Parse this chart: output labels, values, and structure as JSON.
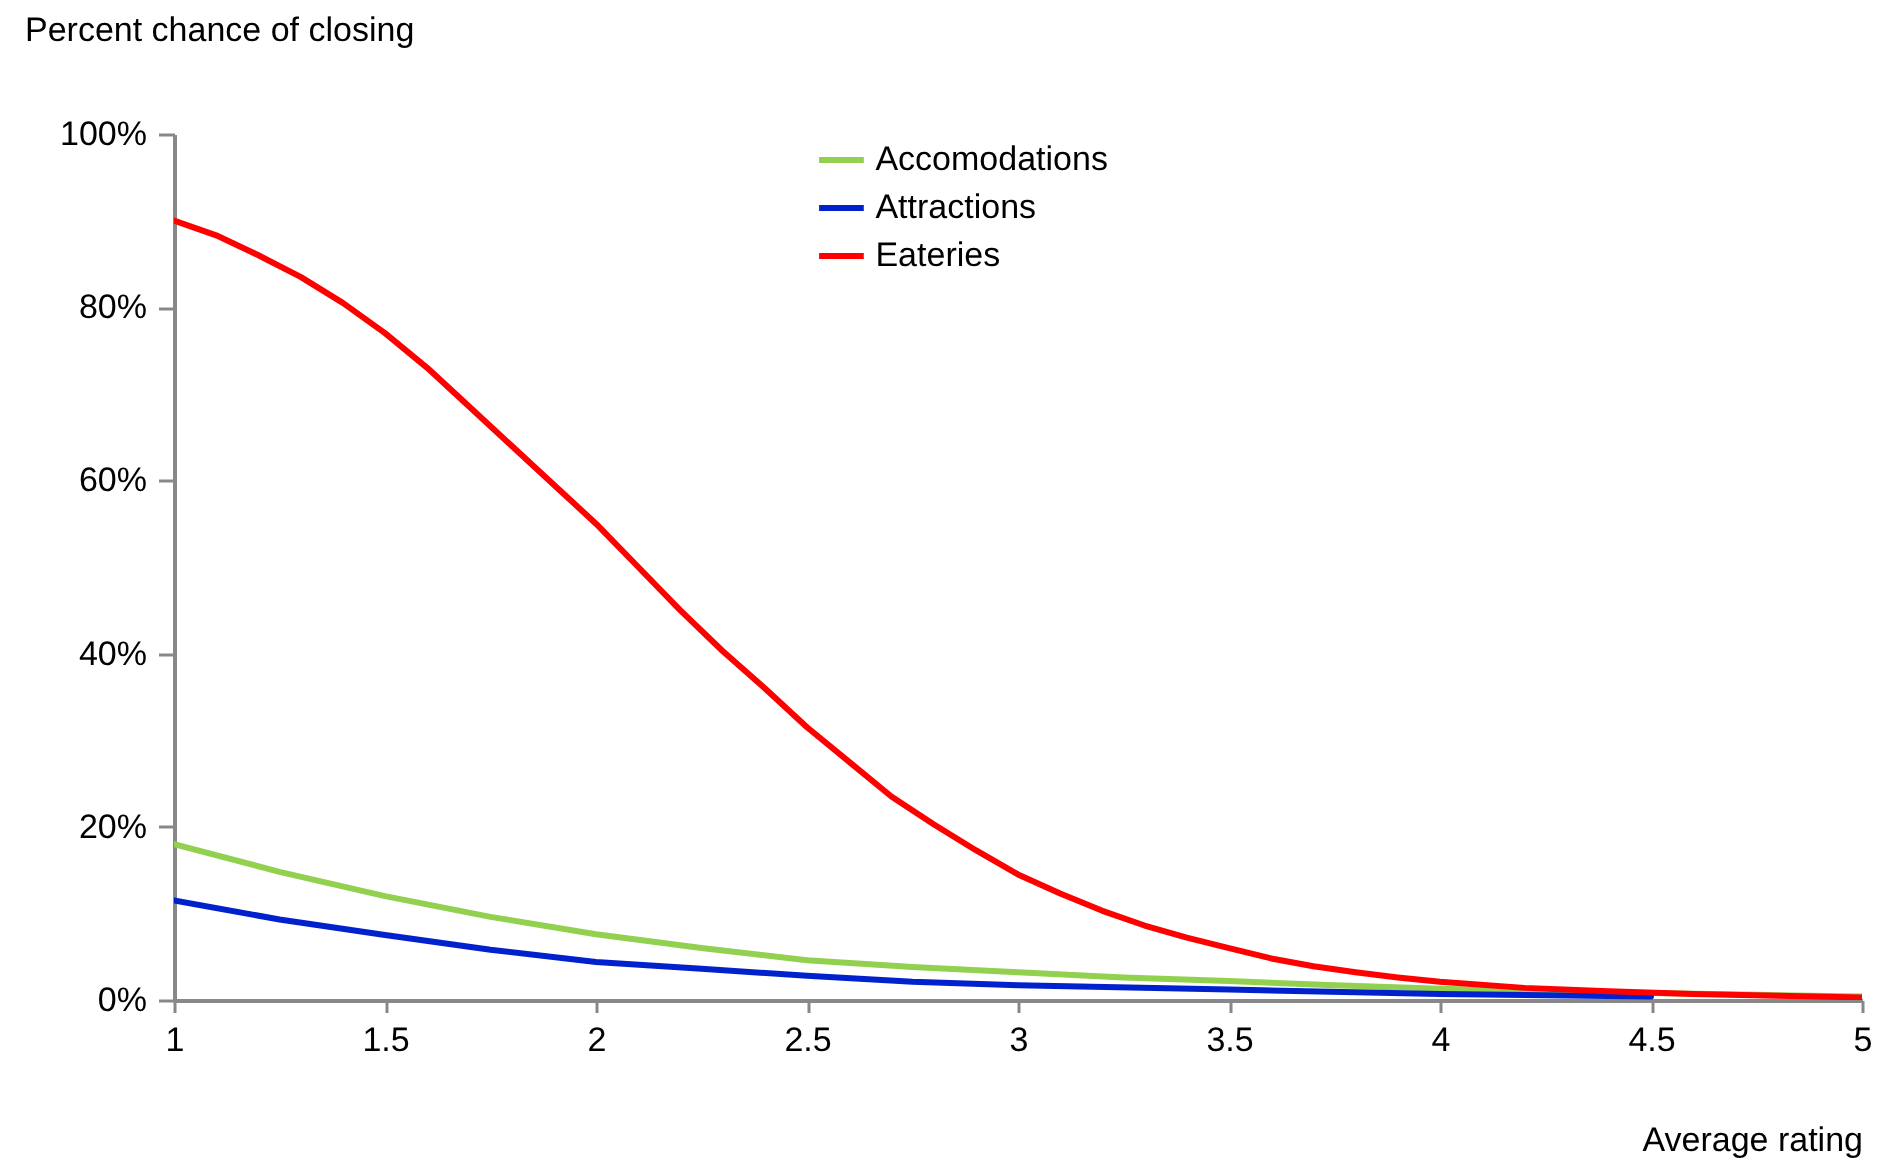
{
  "chart_data": {
    "type": "line",
    "xlabel": "Average rating",
    "ylabel": "Percent chance of closing",
    "xlim": [
      1,
      5
    ],
    "xticks": [
      1,
      1.5,
      2,
      2.5,
      3,
      3.5,
      4,
      4.5,
      5
    ],
    "ylim": [
      0,
      100
    ],
    "yticks": [
      {
        "value": 0,
        "label": "0%"
      },
      {
        "value": 20,
        "label": "20%"
      },
      {
        "value": 40,
        "label": "40%"
      },
      {
        "value": 60,
        "label": "60%"
      },
      {
        "value": 80,
        "label": "80%"
      },
      {
        "value": 100,
        "label": "100%"
      }
    ],
    "grid": false,
    "legend": "top",
    "line_style": "solid",
    "marker": "none",
    "series": [
      {
        "name": "Accomodations",
        "color": "#92d050",
        "x": [
          1,
          1.25,
          1.5,
          1.75,
          2,
          2.25,
          2.5,
          2.75,
          3,
          3.25,
          3.5,
          3.75,
          4,
          4.25,
          4.5,
          4.75,
          5
        ],
        "values": [
          18,
          14.8,
          12,
          9.6,
          7.6,
          6,
          4.6,
          3.8,
          3.2,
          2.6,
          2.2,
          1.7,
          1.3,
          1,
          0.8,
          0.6,
          0.4
        ]
      },
      {
        "name": "Attractions",
        "color": "#0022cc",
        "x": [
          1,
          1.25,
          1.5,
          1.75,
          2,
          2.25,
          2.5,
          2.75,
          3,
          3.5,
          4,
          4.5
        ],
        "values": [
          11.5,
          9.3,
          7.5,
          5.8,
          4.4,
          3.6,
          2.8,
          2.1,
          1.7,
          1.2,
          0.7,
          0.4
        ]
      },
      {
        "name": "Eateries",
        "color": "#ff0000",
        "x": [
          1,
          1.1,
          1.2,
          1.3,
          1.4,
          1.5,
          1.6,
          1.7,
          1.8,
          1.9,
          2,
          2.1,
          2.2,
          2.3,
          2.4,
          2.5,
          2.6,
          2.7,
          2.8,
          2.9,
          3,
          3.1,
          3.2,
          3.3,
          3.4,
          3.5,
          3.6,
          3.7,
          3.8,
          3.9,
          4,
          4.2,
          4.4,
          4.6,
          4.8,
          5
        ],
        "values": [
          90,
          88.3,
          86,
          83.5,
          80.5,
          77,
          73,
          68.5,
          64,
          59.5,
          55,
          50,
          45,
          40.3,
          36,
          31.5,
          27.5,
          23.5,
          20.3,
          17.3,
          14.5,
          12.3,
          10.3,
          8.6,
          7.2,
          6,
          4.8,
          3.9,
          3.2,
          2.6,
          2.1,
          1.4,
          1,
          0.7,
          0.5,
          0.3
        ]
      }
    ]
  }
}
